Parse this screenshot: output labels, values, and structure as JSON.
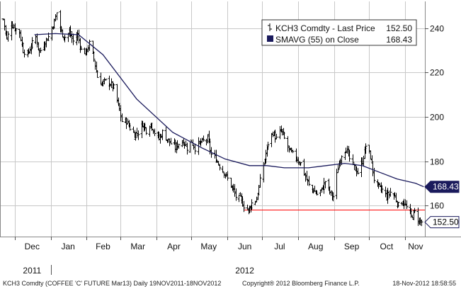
{
  "chart_data": {
    "type": "line",
    "ticker": "KCH3 Comdty",
    "series": [
      {
        "name": "KCH3 Comdty - Last Price",
        "last_value": 152.5,
        "last_label": "152.50",
        "style": "ohlc-bars",
        "color": "#000000"
      },
      {
        "name": "SMAVG (55) on Close",
        "last_value": 168.43,
        "last_label": "168.43",
        "color": "#1a1a5c",
        "x": [
          "2011-12-18",
          "2012-01-05",
          "2012-01-25",
          "2012-02-15",
          "2012-03-15",
          "2012-04-15",
          "2012-05-10",
          "2012-05-30",
          "2012-06-20",
          "2012-07-05",
          "2012-07-20",
          "2012-08-10",
          "2012-08-25",
          "2012-09-10",
          "2012-09-25",
          "2012-10-10",
          "2012-10-25",
          "2012-11-10",
          "2012-11-17"
        ],
        "values": [
          237,
          237.5,
          237,
          228,
          208,
          193,
          186,
          181,
          178,
          178,
          177,
          177,
          178,
          179,
          178,
          175,
          172,
          170,
          168.43
        ]
      }
    ],
    "price_points": [
      [
        "2011-11-21",
        244
      ],
      [
        "2011-11-24",
        235
      ],
      [
        "2011-11-28",
        242
      ],
      [
        "2011-12-01",
        240
      ],
      [
        "2011-12-05",
        238
      ],
      [
        "2011-12-08",
        230
      ],
      [
        "2011-12-12",
        228
      ],
      [
        "2011-12-15",
        232
      ],
      [
        "2011-12-19",
        236
      ],
      [
        "2011-12-22",
        229
      ],
      [
        "2011-12-27",
        234
      ],
      [
        "2011-12-30",
        236
      ],
      [
        "2012-01-04",
        243
      ],
      [
        "2012-01-06",
        247
      ],
      [
        "2012-01-10",
        238
      ],
      [
        "2012-01-13",
        236
      ],
      [
        "2012-01-17",
        238
      ],
      [
        "2012-01-20",
        234
      ],
      [
        "2012-01-24",
        237
      ],
      [
        "2012-01-27",
        230
      ],
      [
        "2012-01-31",
        229
      ],
      [
        "2012-02-03",
        233
      ],
      [
        "2012-02-07",
        226
      ],
      [
        "2012-02-10",
        218
      ],
      [
        "2012-02-14",
        215
      ],
      [
        "2012-02-17",
        216
      ],
      [
        "2012-02-21",
        215
      ],
      [
        "2012-02-24",
        213
      ],
      [
        "2012-02-28",
        205
      ],
      [
        "2012-03-02",
        198
      ],
      [
        "2012-03-06",
        198
      ],
      [
        "2012-03-09",
        195
      ],
      [
        "2012-03-13",
        192
      ],
      [
        "2012-03-16",
        193
      ],
      [
        "2012-03-20",
        197
      ],
      [
        "2012-03-23",
        194
      ],
      [
        "2012-03-27",
        197
      ],
      [
        "2012-03-30",
        193
      ],
      [
        "2012-04-03",
        190
      ],
      [
        "2012-04-06",
        193
      ],
      [
        "2012-04-10",
        190
      ],
      [
        "2012-04-13",
        188
      ],
      [
        "2012-04-17",
        186
      ],
      [
        "2012-04-20",
        188
      ],
      [
        "2012-04-24",
        189
      ],
      [
        "2012-04-27",
        186
      ],
      [
        "2012-05-01",
        189
      ],
      [
        "2012-05-04",
        186
      ],
      [
        "2012-05-08",
        188
      ],
      [
        "2012-05-11",
        189
      ],
      [
        "2012-05-15",
        190
      ],
      [
        "2012-05-18",
        183
      ],
      [
        "2012-05-22",
        181
      ],
      [
        "2012-05-25",
        178
      ],
      [
        "2012-05-29",
        175
      ],
      [
        "2012-06-01",
        172
      ],
      [
        "2012-06-05",
        168
      ],
      [
        "2012-06-08",
        164
      ],
      [
        "2012-06-12",
        163
      ],
      [
        "2012-06-15",
        160
      ],
      [
        "2012-06-19",
        158
      ],
      [
        "2012-06-22",
        161
      ],
      [
        "2012-06-26",
        163
      ],
      [
        "2012-06-29",
        171
      ],
      [
        "2012-07-03",
        181
      ],
      [
        "2012-07-06",
        188
      ],
      [
        "2012-07-10",
        193
      ],
      [
        "2012-07-13",
        190
      ],
      [
        "2012-07-17",
        194
      ],
      [
        "2012-07-20",
        190
      ],
      [
        "2012-07-24",
        185
      ],
      [
        "2012-07-27",
        183
      ],
      [
        "2012-07-31",
        181
      ],
      [
        "2012-08-03",
        179
      ],
      [
        "2012-08-07",
        173
      ],
      [
        "2012-08-10",
        169
      ],
      [
        "2012-08-14",
        167
      ],
      [
        "2012-08-17",
        165
      ],
      [
        "2012-08-21",
        167
      ],
      [
        "2012-08-24",
        171
      ],
      [
        "2012-08-28",
        166
      ],
      [
        "2012-08-31",
        164
      ],
      [
        "2012-09-04",
        177
      ],
      [
        "2012-09-07",
        183
      ],
      [
        "2012-09-11",
        186
      ],
      [
        "2012-09-14",
        181
      ],
      [
        "2012-09-18",
        177
      ],
      [
        "2012-09-21",
        175
      ],
      [
        "2012-09-25",
        180
      ],
      [
        "2012-09-28",
        187
      ],
      [
        "2012-10-02",
        182
      ],
      [
        "2012-10-05",
        172
      ],
      [
        "2012-10-09",
        168
      ],
      [
        "2012-10-12",
        167
      ],
      [
        "2012-10-16",
        164
      ],
      [
        "2012-10-19",
        166
      ],
      [
        "2012-10-23",
        164
      ],
      [
        "2012-10-26",
        160
      ],
      [
        "2012-10-30",
        162
      ],
      [
        "2012-11-02",
        159
      ],
      [
        "2012-11-06",
        155
      ],
      [
        "2012-11-09",
        157
      ],
      [
        "2012-11-13",
        153
      ],
      [
        "2012-11-16",
        152.5
      ]
    ],
    "reference_line": {
      "value": 158,
      "from": "2012-06-15",
      "to": "2012-11-17",
      "color": "#ff0000"
    },
    "x_range": [
      "2011-11-19",
      "2012-11-18"
    ],
    "ylim": [
      146,
      252
    ],
    "y_ticks": [
      160,
      180,
      200,
      220,
      240
    ],
    "x_tick_labels": [
      {
        "label": "Dec",
        "date": "2011-12-16"
      },
      {
        "label": "Jan",
        "date": "2012-01-16"
      },
      {
        "label": "Feb",
        "date": "2012-02-15"
      },
      {
        "label": "Mar",
        "date": "2012-03-16"
      },
      {
        "label": "Apr",
        "date": "2012-04-16"
      },
      {
        "label": "May",
        "date": "2012-05-16"
      },
      {
        "label": "Jun",
        "date": "2012-06-16"
      },
      {
        "label": "Jul",
        "date": "2012-07-16"
      },
      {
        "label": "Aug",
        "date": "2012-08-16"
      },
      {
        "label": "Sep",
        "date": "2012-09-16"
      },
      {
        "label": "Oct",
        "date": "2012-10-16"
      },
      {
        "label": "Nov",
        "date": "2012-11-10"
      }
    ],
    "year_labels": [
      {
        "label": "2011",
        "date": "2011-12-16"
      },
      {
        "label": "2012",
        "date": "2012-06-16"
      }
    ],
    "grid": true,
    "legend_position": "top-right"
  },
  "footer": {
    "left": "KCH3 Comdty (COFFEE 'C' FUTURE Mar13) Daily 19NOV2011-18NOV2012",
    "center": "Copyright® 2012 Bloomberg Finance L.P.",
    "right": "18-Nov-2012 18:58:55"
  },
  "colors": {
    "background": "#ffffff",
    "grid": "#c8c8c8",
    "price": "#000000",
    "sma": "#1a1a5c",
    "reference": "#ff0000",
    "price_tag_fill": "#ffffff",
    "sma_tag_fill": "#1a1a5c"
  }
}
